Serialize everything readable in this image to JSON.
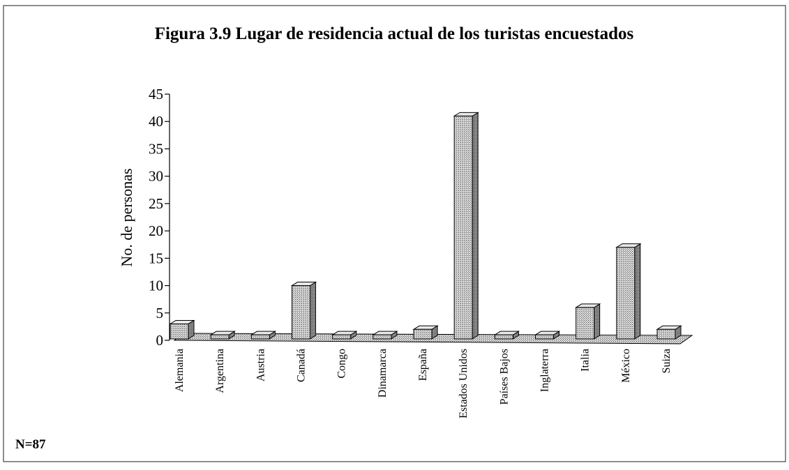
{
  "chart_data": {
    "type": "bar3d",
    "title": "Figura 3.9 Lugar de residencia actual de los turistas encuestados",
    "y_label": "No. de personas",
    "annotation": "N=87",
    "categories": [
      "Alemania",
      "Argentina",
      "Austria",
      "Canadá",
      "Congo",
      "Dinamarca",
      "España",
      "Estados Unidos",
      "Países Bajos",
      "Inglaterra",
      "Italia",
      "México",
      "Suiza"
    ],
    "values": [
      3,
      1,
      1,
      10,
      1,
      1,
      2,
      41,
      1,
      1,
      6,
      17,
      2
    ],
    "color": "#b8b8b8",
    "ylim": [
      0,
      45
    ],
    "yticks": [
      0,
      5,
      10,
      15,
      20,
      25,
      30,
      35,
      40,
      45
    ]
  }
}
